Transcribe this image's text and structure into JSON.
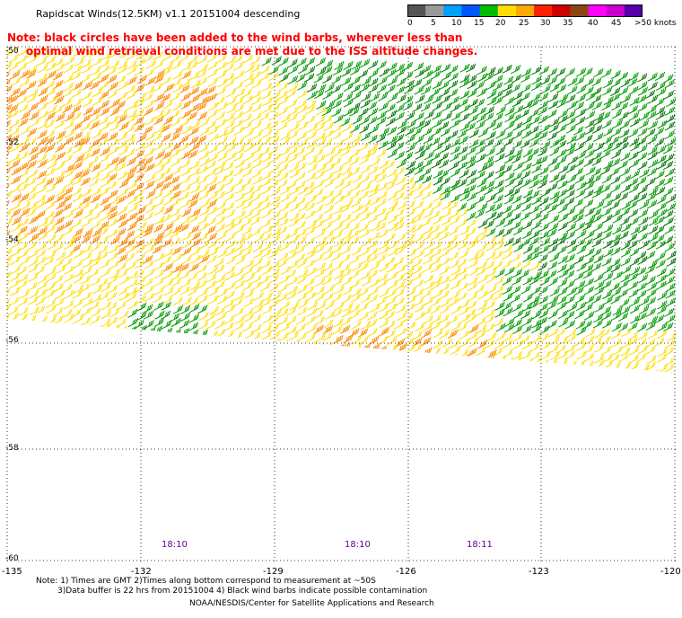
{
  "header": {
    "title": "Rapidscat Winds(12.5KM) v1.1 20151004 descending",
    "note": "Note: black circles have been added to the wind barbs, wherever less than\n     optimal wind retrieval conditions are met due to the ISS altitude changes."
  },
  "colorbar": {
    "labels": [
      "0",
      "5",
      "10",
      "15",
      "20",
      "25",
      "30",
      "35",
      "40",
      "45",
      ">50 knots"
    ],
    "colors": [
      "#555555",
      "#999999",
      "#00a0ff",
      "#0055ff",
      "#00bb00",
      "#ffdd00",
      "#ffaa00",
      "#ff2200",
      "#cc0000",
      "#8b4513",
      "#ff00ff",
      "#cc00cc",
      "#5500aa"
    ]
  },
  "map": {
    "lat_labels": [
      "-50",
      "-52",
      "-54",
      "-56",
      "-58",
      "-60"
    ],
    "lon_labels": [
      "-135",
      "-132",
      "-129",
      "-126",
      "-123",
      "-120"
    ],
    "time_labels": [
      "18:10",
      "18:10",
      "18:11"
    ],
    "barb_colors": {
      "strong": "#ff8800",
      "moderate": "#ffdd00",
      "light": "#009900",
      "dark": "#007700"
    }
  },
  "footer": {
    "line1": "Note: 1) Times are GMT 2)Times along bottom correspond to measurement at ~50S",
    "line2": "3)Data buffer is 22 hrs from 20151004 4) Black wind barbs indicate possible contamination",
    "credit": "NOAA/NESDIS/Center for Satellite Applications and Research"
  }
}
